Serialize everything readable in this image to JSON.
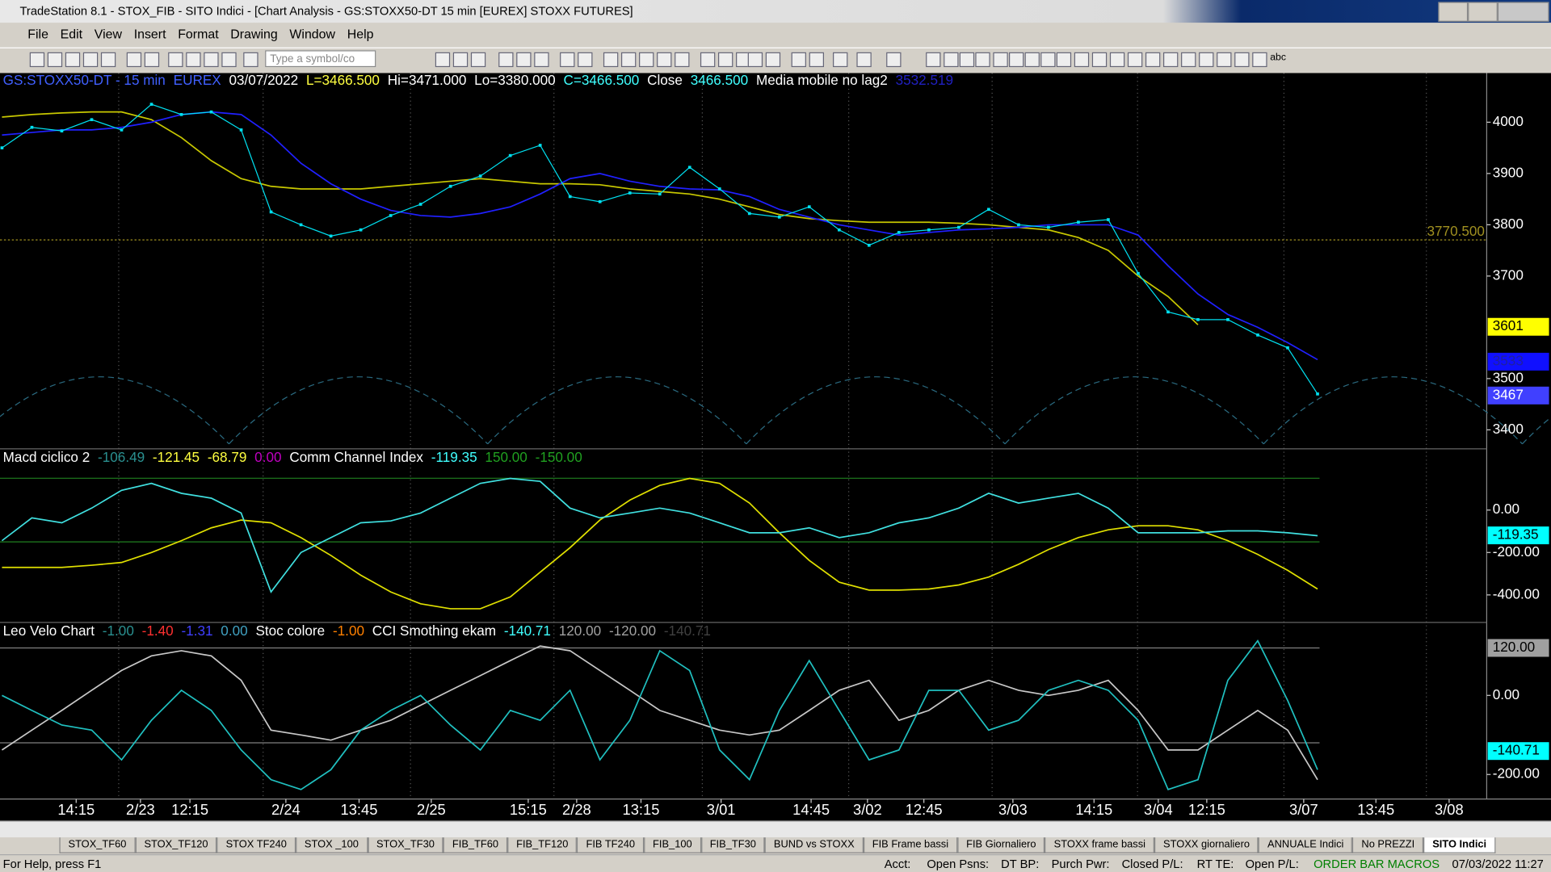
{
  "window": {
    "title": "TradeStation 8.1 - STOX_FIB - SITO Indici - [Chart Analysis - GS:STOXX50-DT  15 min  [EUREX] STOXX FUTURES]"
  },
  "menu": [
    "File",
    "Edit",
    "View",
    "Insert",
    "Format",
    "Drawing",
    "Window",
    "Help"
  ],
  "toolbar": {
    "symbol_placeholder": "Type a symbol/co",
    "text_tool": "abc"
  },
  "chart": {
    "panels": [
      {
        "header": [
          {
            "text": "GS:STOXX50-DT - 15 min",
            "color": "#4060ff"
          },
          {
            "text": "EUREX",
            "color": "#4060ff"
          },
          {
            "text": "03/07/2022",
            "color": "#ffffff"
          },
          {
            "text": "L=3466.500",
            "color": "#ffff40"
          },
          {
            "text": "Hi=3471.000",
            "color": "#ffffff"
          },
          {
            "text": "Lo=3380.000",
            "color": "#ffffff"
          },
          {
            "text": "C=3466.500",
            "color": "#40ffff"
          },
          {
            "text": "Close",
            "color": "#ffffff"
          },
          {
            "text": "3466.500",
            "color": "#40ffff"
          },
          {
            "text": "Media mobile no lag2",
            "color": "#ffffff"
          },
          {
            "text": "3532.519",
            "color": "#2020c0"
          }
        ],
        "ylim": [
          3363,
          4096
        ],
        "yticks": [
          4000,
          3900,
          3800,
          3700,
          3500,
          3400
        ],
        "level": {
          "value": 3770.5,
          "label": "3770.500",
          "color": "#a09020"
        },
        "boxes": [
          {
            "value": 3601,
            "color": "#ffff00",
            "text_color": "#000000"
          },
          {
            "value": 3533,
            "color": "#1010ff",
            "text_color": "#2020a0"
          },
          {
            "value": 3467,
            "color": "#4040ff",
            "text_color": "#ffffff"
          }
        ],
        "series": [
          {
            "color": "#c8c800",
            "dots": false,
            "values": [
              4010,
              4015,
              4018,
              4020,
              4020,
              4005,
              3970,
              3925,
              3890,
              3875,
              3870,
              3870,
              3870,
              3875,
              3880,
              3885,
              3890,
              3885,
              3880,
              3880,
              3878,
              3870,
              3865,
              3860,
              3850,
              3835,
              3820,
              3812,
              3808,
              3805,
              3805,
              3805,
              3803,
              3800,
              3795,
              3790,
              3775,
              3750,
              3700,
              3660,
              3605,
              null,
              null,
              null,
              null
            ]
          },
          {
            "color": "#2020ff",
            "dots": false,
            "values": [
              3975,
              3980,
              3985,
              3985,
              3990,
              4000,
              4015,
              4020,
              4015,
              3975,
              3920,
              3880,
              3850,
              3828,
              3818,
              3815,
              3822,
              3835,
              3860,
              3890,
              3900,
              3885,
              3875,
              3870,
              3868,
              3855,
              3830,
              3815,
              3800,
              3790,
              3780,
              3785,
              3790,
              3792,
              3795,
              3800,
              3800,
              3800,
              3780,
              3720,
              3665,
              3625,
              3600,
              3570,
              3537
            ]
          },
          {
            "color": "#00e0f0",
            "dots": true,
            "values": [
              3950,
              3990,
              3983,
              4005,
              3985,
              4035,
              4015,
              4020,
              3985,
              3825,
              3800,
              3778,
              3790,
              3818,
              3840,
              3875,
              3895,
              3935,
              3955,
              3855,
              3845,
              3862,
              3860,
              3912,
              3870,
              3822,
              3815,
              3835,
              3790,
              3760,
              3785,
              3790,
              3795,
              3830,
              3800,
              3795,
              3805,
              3810,
              3705,
              3630,
              3615,
              3615,
              3585,
              3560,
              3470
            ]
          }
        ]
      },
      {
        "header": [
          {
            "text": "Macd ciclico 2",
            "color": "#ffffff"
          },
          {
            "text": "-106.49",
            "color": "#2a9090"
          },
          {
            "text": "-121.45",
            "color": "#ffff40"
          },
          {
            "text": "-68.79",
            "color": "#ffff40"
          },
          {
            "text": "0.00",
            "color": "#c000c0"
          },
          {
            "text": "Comm Channel Index",
            "color": "#ffffff"
          },
          {
            "text": "-119.35",
            "color": "#40ffff"
          },
          {
            "text": "150.00",
            "color": "#20a020"
          },
          {
            "text": "-150.00",
            "color": "#20a020"
          }
        ],
        "ylim": [
          -525,
          284
        ],
        "yticks": [
          {
            "value": 0,
            "label": "0.00"
          },
          {
            "value": -200,
            "label": "-200.00"
          },
          {
            "value": -400,
            "label": "-400.00"
          }
        ],
        "levels": [
          {
            "value": 150,
            "color": "#208020"
          },
          {
            "value": -150,
            "color": "#208020"
          }
        ],
        "boxes": [
          {
            "value": -119.35,
            "label": "-119.35",
            "color": "#00ffff",
            "text_color": "#000000"
          }
        ],
        "series": [
          {
            "color": "#e0e000",
            "dots": false,
            "values": [
              -270,
              -270,
              -270,
              -260,
              -247,
              -200,
              -144,
              -84,
              -47,
              -60,
              -130,
              -214,
              -307,
              -386,
              -442,
              -465,
              -465,
              -409,
              -293,
              -177,
              -47,
              47,
              116,
              149,
              126,
              33,
              -107,
              -237,
              -340,
              -377,
              -377,
              -372,
              -353,
              -316,
              -256,
              -186,
              -130,
              -93,
              -74,
              -74,
              -93,
              -144,
              -209,
              -284,
              -372
            ]
          },
          {
            "color": "#40e0e0",
            "dots": false,
            "values": [
              -144,
              -37,
              -60,
              9,
              93,
              126,
              79,
              56,
              -14,
              -386,
              -200,
              -130,
              -60,
              -51,
              -14,
              56,
              126,
              149,
              135,
              9,
              -37,
              -14,
              9,
              -14,
              -60,
              -107,
              -107,
              -84,
              -130,
              -107,
              -60,
              -37,
              9,
              79,
              33,
              56,
              79,
              9,
              -107,
              -107,
              -107,
              -98,
              -98,
              -107,
              -121
            ]
          }
        ]
      },
      {
        "header": [
          {
            "text": "Leo Velo Chart",
            "color": "#ffffff"
          },
          {
            "text": "-1.00",
            "color": "#2a9090"
          },
          {
            "text": "-1.40",
            "color": "#ff3030"
          },
          {
            "text": "-1.31",
            "color": "#4040ff"
          },
          {
            "text": "0.00",
            "color": "#40a0c0"
          },
          {
            "text": "Stoc colore",
            "color": "#ffffff"
          },
          {
            "text": "-1.00",
            "color": "#ff8000"
          },
          {
            "text": "CCI Smothing ekam",
            "color": "#ffffff"
          },
          {
            "text": "-140.71",
            "color": "#40ffff"
          },
          {
            "text": "120.00",
            "color": "#a0a0a0"
          },
          {
            "text": "-120.00",
            "color": "#a0a0a0"
          },
          {
            "text": "-140.71",
            "color": "#404040"
          }
        ],
        "ylim": [
          -257,
          182
        ],
        "yticks": [
          {
            "value": 0,
            "label": "0.00"
          },
          {
            "value": -200,
            "label": "-200.00"
          }
        ],
        "levels": [
          {
            "value": 120,
            "color": "#808080"
          },
          {
            "value": -120,
            "color": "#808080"
          }
        ],
        "boxes": [
          {
            "value": 120,
            "label": "120.00",
            "color": "#a0a0a0",
            "text_color": "#000000"
          },
          {
            "value": -140.71,
            "label": "-140.71",
            "color": "#00ffff",
            "text_color": "#000000"
          }
        ],
        "series": [
          {
            "color": "#c8c8c8",
            "dots": false,
            "values": [
              -138,
              -88,
              -38,
              13,
              63,
              100,
              113,
              100,
              38,
              -88,
              -100,
              -113,
              -88,
              -63,
              -25,
              13,
              50,
              88,
              125,
              113,
              63,
              13,
              -38,
              -63,
              -88,
              -100,
              -88,
              -38,
              13,
              38,
              -63,
              -38,
              13,
              38,
              13,
              0,
              13,
              38,
              -38,
              -138,
              -138,
              -88,
              -38,
              -88,
              -213
            ]
          },
          {
            "color": "#20c0c0",
            "dots": false,
            "values": [
              0,
              -38,
              -75,
              -88,
              -163,
              -63,
              13,
              -38,
              -138,
              -213,
              -238,
              -188,
              -88,
              -38,
              0,
              -75,
              -138,
              -38,
              -63,
              13,
              -163,
              -63,
              113,
              63,
              -138,
              -213,
              -38,
              88,
              -38,
              -163,
              -138,
              13,
              13,
              -88,
              -63,
              13,
              38,
              13,
              -63,
              -238,
              -213,
              38,
              138,
              -13,
              -188
            ]
          }
        ]
      }
    ],
    "time_labels": [
      "14:15",
      "2/23",
      "12:15",
      "2/24",
      "13:45",
      "2/25",
      "15:15",
      "2/28",
      "13:15",
      "3/01",
      "14:45",
      "3/02",
      "12:45",
      "3/03",
      "14:15",
      "3/04",
      "12:15",
      "3/07",
      "13:45",
      "3/08"
    ]
  },
  "tabs": [
    "STOX_TF60",
    "STOX_TF120",
    "STOX TF240",
    "STOX _100",
    "STOX_TF30",
    "FIB_TF60",
    "FIB_TF120",
    "FIB TF240",
    "FIB_100",
    "FIB_TF30",
    "BUND vs STOXX",
    "FIB Frame bassi",
    "FIB Giornaliero",
    "STOXX frame bassi",
    "STOXX giornaliero",
    "ANNUALE Indici",
    "No PREZZI",
    "SITO Indici"
  ],
  "status": {
    "help": "For Help, press F1",
    "fields": [
      "Acct:",
      "Open Psns:",
      "DT BP:",
      "Purch Pwr:",
      "Closed P/L:",
      "RT TE:",
      "Open P/L:"
    ],
    "macros": "ORDER BAR MACROS",
    "datetime": "07/03/2022 11:27"
  }
}
